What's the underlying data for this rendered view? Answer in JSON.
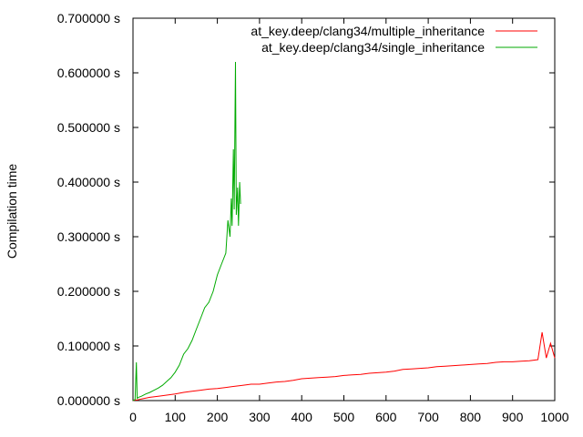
{
  "chart_data": {
    "type": "line",
    "ylabel": "Compilation time",
    "xlim": [
      0,
      1000
    ],
    "ylim": [
      0,
      0.7
    ],
    "grid": false,
    "legend_placement": "top-right",
    "x_ticks": [
      0,
      100,
      200,
      300,
      400,
      500,
      600,
      700,
      800,
      900,
      1000
    ],
    "x_tick_labels": [
      "0",
      "100",
      "200",
      "300",
      "400",
      "500",
      "600",
      "700",
      "800",
      "900",
      "1000"
    ],
    "y_ticks": [
      0,
      0.1,
      0.2,
      0.3,
      0.4,
      0.5,
      0.6,
      0.7
    ],
    "y_tick_labels": [
      "0.000000 s",
      "0.100000 s",
      "0.200000 s",
      "0.300000 s",
      "0.400000 s",
      "0.500000 s",
      "0.600000 s",
      "0.700000 s"
    ],
    "series": [
      {
        "name": "at_key.deep/clang34/multiple_inheritance",
        "color": "#ff0000",
        "x": [
          0,
          5,
          10,
          20,
          40,
          60,
          80,
          100,
          120,
          140,
          160,
          180,
          200,
          220,
          240,
          260,
          280,
          300,
          320,
          340,
          360,
          380,
          400,
          420,
          440,
          460,
          480,
          500,
          520,
          540,
          560,
          580,
          600,
          620,
          640,
          660,
          680,
          700,
          720,
          740,
          760,
          780,
          800,
          820,
          840,
          860,
          880,
          900,
          920,
          940,
          960,
          970,
          980,
          990,
          1000
        ],
        "y": [
          0,
          0.001,
          0.001,
          0.003,
          0.006,
          0.008,
          0.01,
          0.012,
          0.015,
          0.017,
          0.019,
          0.021,
          0.022,
          0.024,
          0.026,
          0.028,
          0.03,
          0.03,
          0.032,
          0.034,
          0.035,
          0.037,
          0.04,
          0.041,
          0.042,
          0.043,
          0.044,
          0.046,
          0.047,
          0.048,
          0.05,
          0.051,
          0.052,
          0.054,
          0.057,
          0.058,
          0.059,
          0.06,
          0.062,
          0.063,
          0.064,
          0.065,
          0.066,
          0.067,
          0.068,
          0.07,
          0.071,
          0.071,
          0.072,
          0.073,
          0.075,
          0.125,
          0.078,
          0.105,
          0.078
        ]
      },
      {
        "name": "at_key.deep/clang34/single_inheritance",
        "color": "#00aa00",
        "x": [
          0,
          5,
          8,
          10,
          13,
          20,
          30,
          40,
          50,
          60,
          70,
          80,
          90,
          100,
          110,
          120,
          130,
          140,
          150,
          160,
          170,
          180,
          190,
          200,
          210,
          220,
          225,
          230,
          233,
          235,
          238,
          240,
          243,
          245,
          248,
          250,
          253,
          255
        ],
        "y": [
          0,
          0.002,
          0.07,
          0.004,
          0.006,
          0.008,
          0.012,
          0.015,
          0.019,
          0.023,
          0.028,
          0.035,
          0.042,
          0.052,
          0.065,
          0.085,
          0.095,
          0.11,
          0.13,
          0.15,
          0.17,
          0.18,
          0.2,
          0.23,
          0.25,
          0.27,
          0.33,
          0.3,
          0.37,
          0.32,
          0.46,
          0.35,
          0.62,
          0.34,
          0.39,
          0.32,
          0.4,
          0.36
        ]
      }
    ]
  }
}
